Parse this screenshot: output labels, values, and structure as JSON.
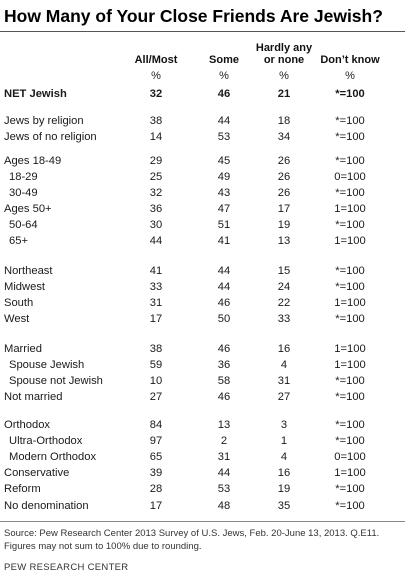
{
  "chart_data": {
    "type": "table",
    "title": "How Many of Your Close Friends Are Jewish?",
    "columns": [
      {
        "label": "All/Most",
        "unit": "%"
      },
      {
        "label": "Some",
        "unit": "%"
      },
      {
        "label": "Hardly any or none",
        "unit": "%"
      },
      {
        "label": "Don’t know",
        "unit": "%"
      }
    ],
    "rows": [
      {
        "label": "NET Jewish",
        "values": [
          "32",
          "46",
          "21",
          "*=100"
        ],
        "bold": true
      },
      {
        "label": "Jews by religion",
        "values": [
          "38",
          "44",
          "18",
          "*=100"
        ]
      },
      {
        "label": "Jews of no religion",
        "values": [
          "14",
          "53",
          "34",
          "*=100"
        ]
      },
      {
        "label": "Ages 18-49",
        "values": [
          "29",
          "45",
          "26",
          "*=100"
        ]
      },
      {
        "label": "18-29",
        "values": [
          "25",
          "49",
          "26",
          "0=100"
        ],
        "indent": true
      },
      {
        "label": "30-49",
        "values": [
          "32",
          "43",
          "26",
          "*=100"
        ],
        "indent": true
      },
      {
        "label": "Ages 50+",
        "values": [
          "36",
          "47",
          "17",
          "1=100"
        ]
      },
      {
        "label": "50-64",
        "values": [
          "30",
          "51",
          "19",
          "*=100"
        ],
        "indent": true
      },
      {
        "label": "65+",
        "values": [
          "44",
          "41",
          "13",
          "1=100"
        ],
        "indent": true
      },
      {
        "label": "Northeast",
        "values": [
          "41",
          "44",
          "15",
          "*=100"
        ]
      },
      {
        "label": "Midwest",
        "values": [
          "33",
          "44",
          "24",
          "*=100"
        ]
      },
      {
        "label": "South",
        "values": [
          "31",
          "46",
          "22",
          "1=100"
        ]
      },
      {
        "label": "West",
        "values": [
          "17",
          "50",
          "33",
          "*=100"
        ]
      },
      {
        "label": "Married",
        "values": [
          "38",
          "46",
          "16",
          "1=100"
        ]
      },
      {
        "label": "Spouse Jewish",
        "values": [
          "59",
          "36",
          "4",
          "1=100"
        ],
        "indent": true
      },
      {
        "label": "Spouse not Jewish",
        "values": [
          "10",
          "58",
          "31",
          "*=100"
        ],
        "indent": true
      },
      {
        "label": "Not married",
        "values": [
          "27",
          "46",
          "27",
          "*=100"
        ]
      },
      {
        "label": "Orthodox",
        "values": [
          "84",
          "13",
          "3",
          "*=100"
        ]
      },
      {
        "label": "Ultra-Orthodox",
        "values": [
          "97",
          "2",
          "1",
          "*=100"
        ],
        "indent": true
      },
      {
        "label": "Modern Orthodox",
        "values": [
          "65",
          "31",
          "4",
          "0=100"
        ],
        "indent": true
      },
      {
        "label": "Conservative",
        "values": [
          "39",
          "44",
          "16",
          "1=100"
        ]
      },
      {
        "label": "Reform",
        "values": [
          "28",
          "53",
          "19",
          "*=100"
        ]
      },
      {
        "label": "No denomination",
        "values": [
          "17",
          "48",
          "35",
          "*=100"
        ]
      }
    ]
  },
  "header": {
    "hardly_line1": "Hardly any",
    "hardly_line2": "or none"
  },
  "footer": {
    "source": "Source: Pew Research Center 2013 Survey of U.S. Jews, Feb. 20-June 13, 2013. Q.E11. Figures may not sum to 100% due to rounding.",
    "credit": "PEW RESEARCH CENTER"
  }
}
